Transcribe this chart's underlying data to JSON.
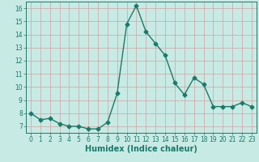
{
  "x": [
    0,
    1,
    2,
    3,
    4,
    5,
    6,
    7,
    8,
    9,
    10,
    11,
    12,
    13,
    14,
    15,
    16,
    17,
    18,
    19,
    20,
    21,
    22,
    23
  ],
  "y": [
    8.0,
    7.5,
    7.6,
    7.2,
    7.0,
    7.0,
    6.8,
    6.8,
    7.3,
    9.5,
    14.8,
    16.2,
    14.2,
    13.3,
    12.4,
    10.3,
    9.4,
    10.7,
    10.2,
    8.5,
    8.5,
    8.5,
    8.8,
    8.5
  ],
  "line_color": "#1a7a6a",
  "marker": "D",
  "markersize": 2.5,
  "linewidth": 1.0,
  "xlabel": "Humidex (Indice chaleur)",
  "xlim": [
    -0.5,
    23.5
  ],
  "ylim": [
    6.5,
    16.5
  ],
  "yticks": [
    7,
    8,
    9,
    10,
    11,
    12,
    13,
    14,
    15,
    16
  ],
  "xticks": [
    0,
    1,
    2,
    3,
    4,
    5,
    6,
    7,
    8,
    9,
    10,
    11,
    12,
    13,
    14,
    15,
    16,
    17,
    18,
    19,
    20,
    21,
    22,
    23
  ],
  "bg_color": "#c8eae4",
  "grid_color": "#d4a0a0",
  "tick_label_fontsize": 5.5,
  "xlabel_fontsize": 7.0,
  "line_color_hex": "#1a7a6a"
}
